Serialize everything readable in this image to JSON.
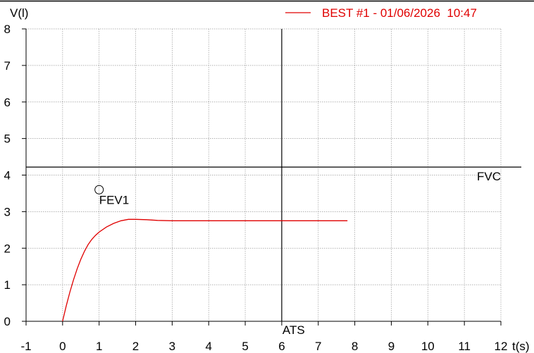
{
  "chart_data": {
    "type": "line",
    "ylabel": "V(l)",
    "xlabel": "t(s)",
    "xlim": [
      -1,
      12
    ],
    "ylim": [
      0,
      8
    ],
    "x_ticks": [
      -1,
      0,
      1,
      2,
      3,
      4,
      5,
      6,
      7,
      8,
      9,
      10,
      11,
      12
    ],
    "y_ticks": [
      0,
      1,
      2,
      3,
      4,
      5,
      6,
      7,
      8
    ],
    "grid": true,
    "legend_position": "top-right",
    "colors": {
      "series": "#e00000",
      "axes": "#000000",
      "grid": "#9a9a9a"
    },
    "series": [
      {
        "name": "BEST #1 - 01/06/2026  10:47",
        "x": [
          0,
          0.1,
          0.2,
          0.3,
          0.4,
          0.5,
          0.6,
          0.7,
          0.8,
          0.9,
          1.0,
          1.2,
          1.4,
          1.6,
          1.8,
          2.0,
          2.3,
          2.6,
          3.0,
          4.0,
          5.0,
          6.0,
          7.0,
          7.8
        ],
        "y": [
          0,
          0.42,
          0.8,
          1.14,
          1.44,
          1.7,
          1.92,
          2.1,
          2.24,
          2.35,
          2.44,
          2.58,
          2.68,
          2.75,
          2.79,
          2.79,
          2.78,
          2.76,
          2.75,
          2.75,
          2.75,
          2.75,
          2.75,
          2.75
        ]
      }
    ],
    "reference_lines": [
      {
        "orientation": "horizontal",
        "value": 4.22,
        "label": "FVC"
      },
      {
        "orientation": "vertical",
        "value": 6,
        "label": "ATS"
      }
    ],
    "markers": [
      {
        "x": 1,
        "y": 3.6,
        "label": "FEV1"
      }
    ]
  }
}
